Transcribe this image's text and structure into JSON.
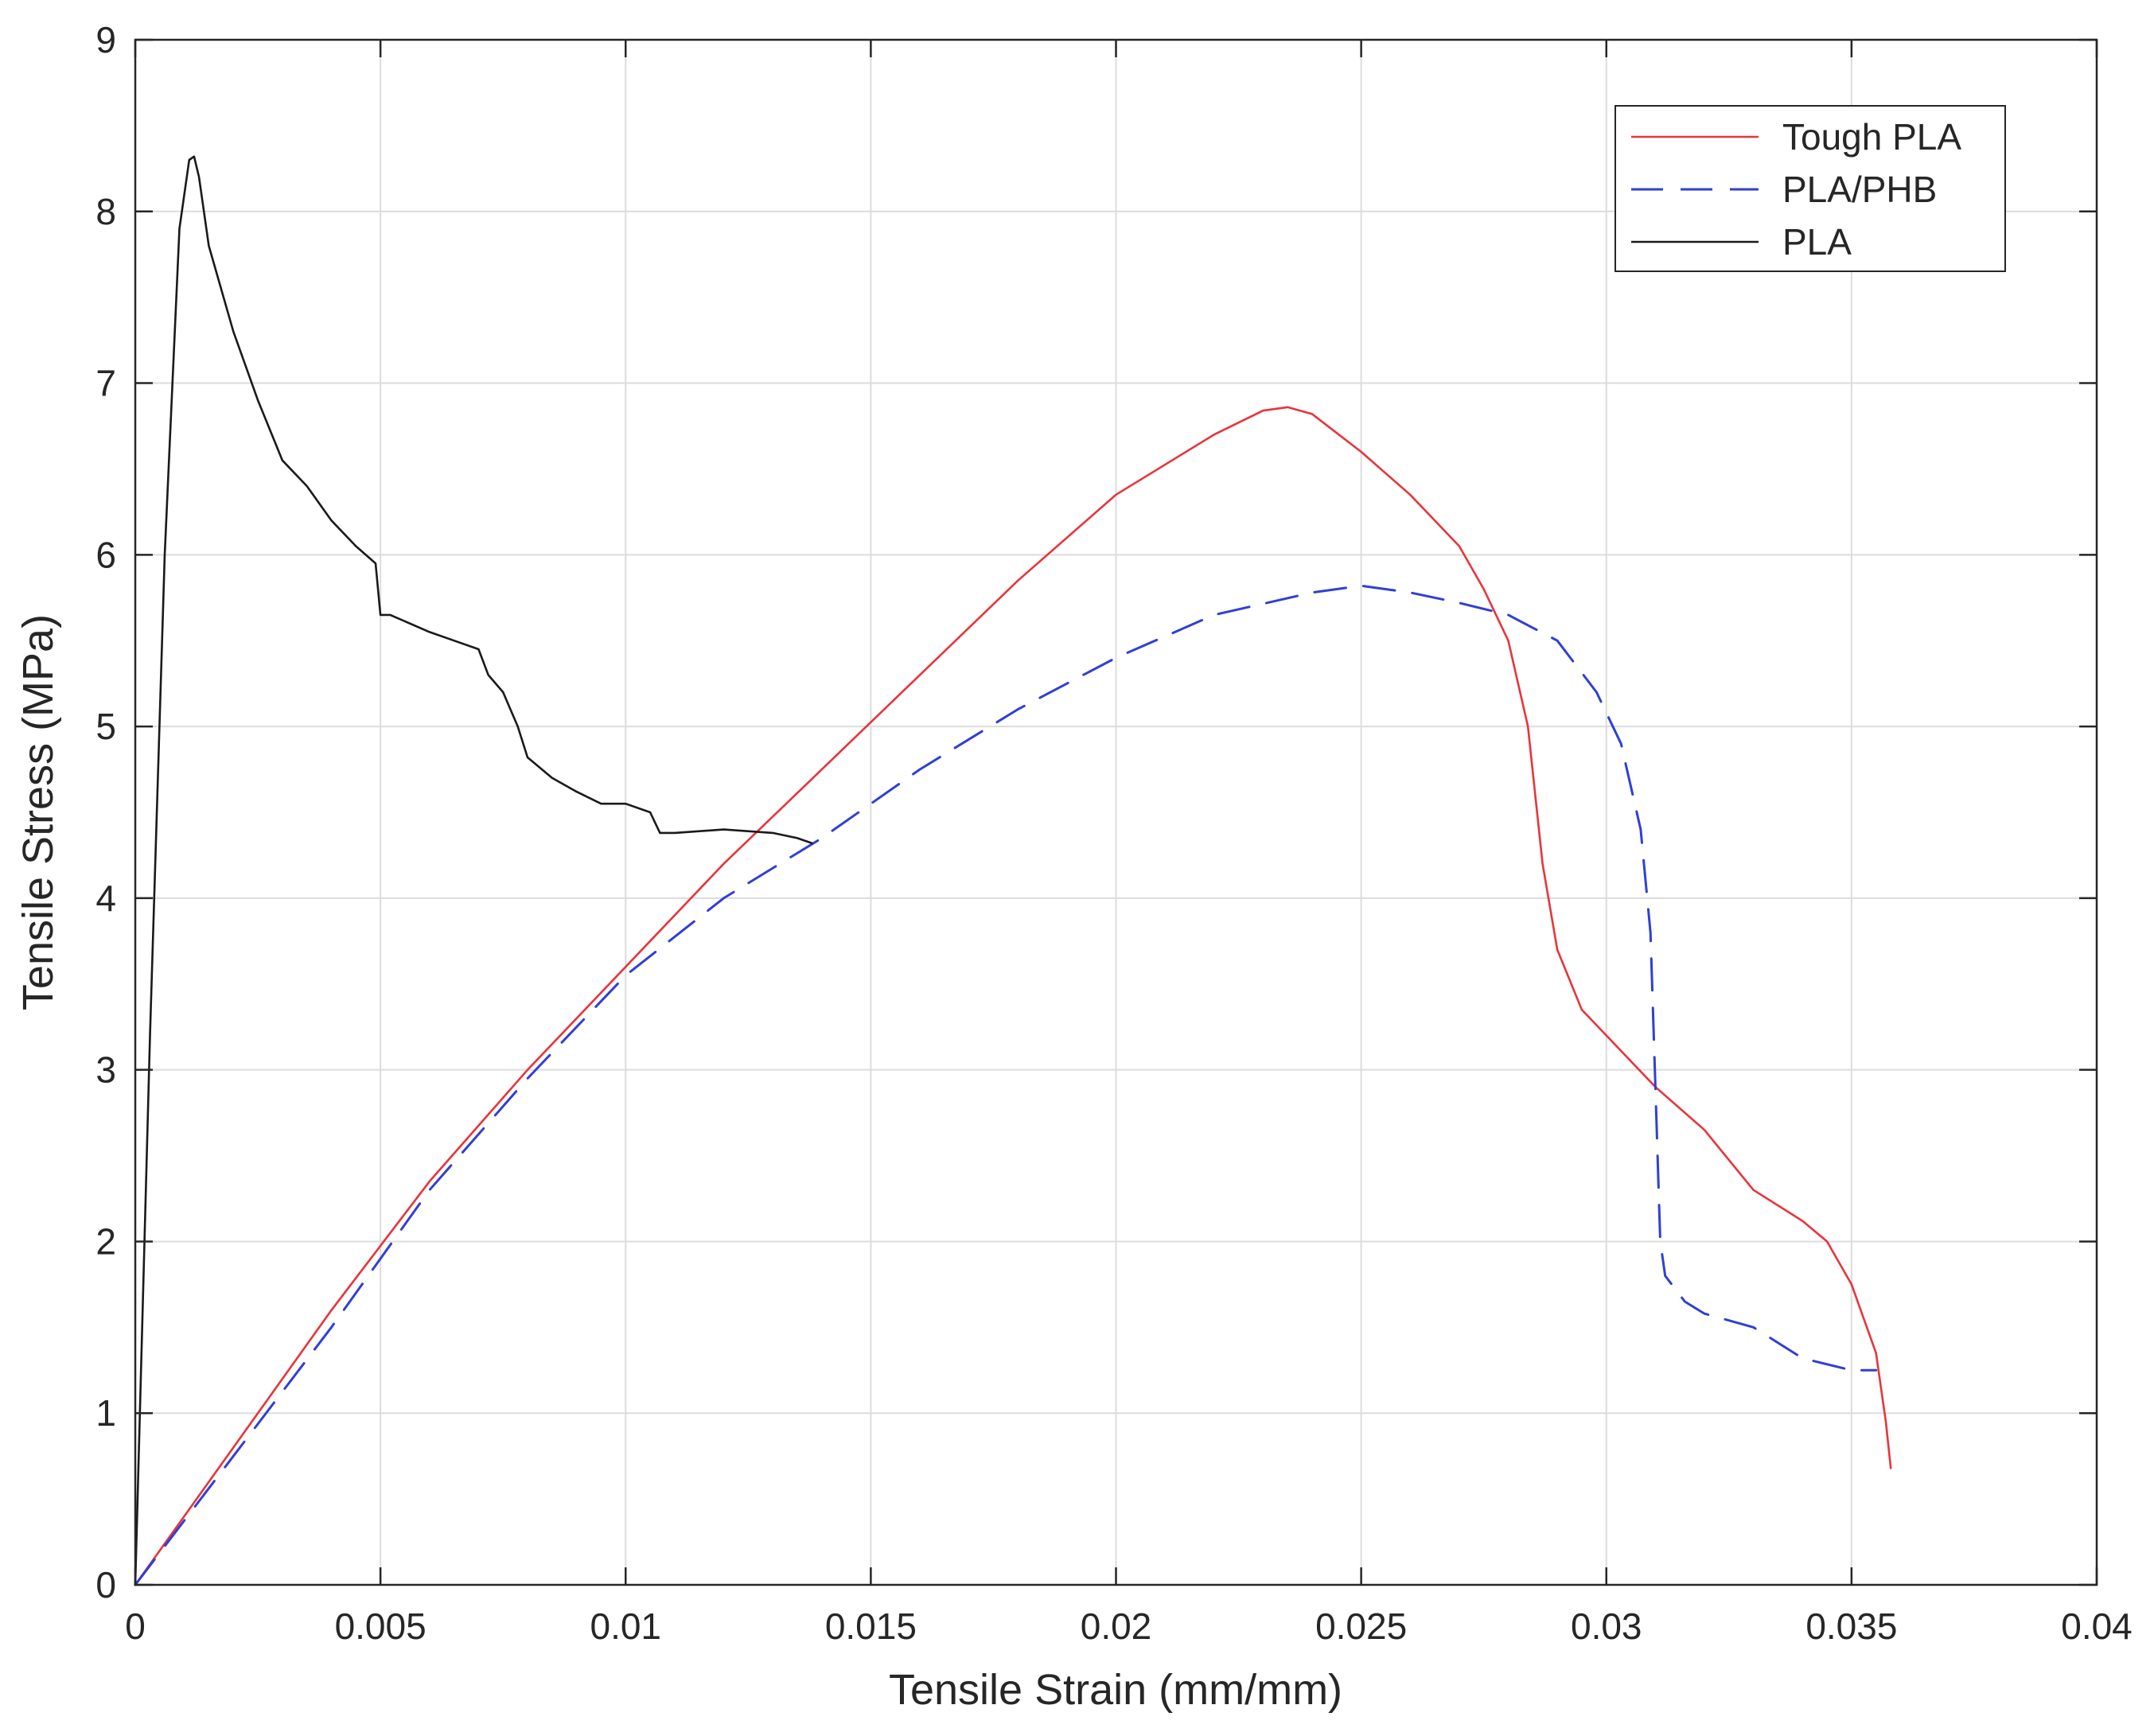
{
  "chart_data": {
    "type": "line",
    "title": "",
    "xlabel": "Tensile Strain (mm/mm)",
    "ylabel": "Tensile Stress (MPa)",
    "xlim": [
      0,
      0.04
    ],
    "ylim": [
      0,
      9
    ],
    "xticks": [
      0,
      0.005,
      0.01,
      0.015,
      0.02,
      0.025,
      0.03,
      0.035,
      0.04
    ],
    "xtick_labels": [
      "0",
      "0.005",
      "0.01",
      "0.015",
      "0.02",
      "0.025",
      "0.03",
      "0.035",
      "0.04"
    ],
    "yticks": [
      0,
      1,
      2,
      3,
      4,
      5,
      6,
      7,
      8,
      9
    ],
    "ytick_labels": [
      "0",
      "1",
      "2",
      "3",
      "4",
      "5",
      "6",
      "7",
      "8",
      "9"
    ],
    "grid": true,
    "legend_position": "top-right",
    "series": [
      {
        "name": "Tough PLA",
        "color": "#e8343a",
        "dash": "solid",
        "x": [
          0,
          0.002,
          0.004,
          0.006,
          0.008,
          0.01,
          0.012,
          0.014,
          0.016,
          0.018,
          0.02,
          0.022,
          0.023,
          0.0235,
          0.024,
          0.025,
          0.026,
          0.027,
          0.0275,
          0.028,
          0.0284,
          0.0287,
          0.029,
          0.0295,
          0.03,
          0.0305,
          0.031,
          0.032,
          0.033,
          0.034,
          0.0345,
          0.035,
          0.0355,
          0.0357,
          0.0358
        ],
        "y": [
          0,
          0.8,
          1.6,
          2.35,
          3.0,
          3.6,
          4.2,
          4.75,
          5.3,
          5.85,
          6.35,
          6.7,
          6.84,
          6.86,
          6.82,
          6.6,
          6.35,
          6.05,
          5.8,
          5.5,
          5.0,
          4.2,
          3.7,
          3.35,
          3.2,
          3.05,
          2.9,
          2.65,
          2.3,
          2.12,
          2.0,
          1.75,
          1.35,
          0.95,
          0.68
        ]
      },
      {
        "name": "PLA/PHB",
        "color": "#2f3fd6",
        "dash": "dashed",
        "x": [
          0,
          0.002,
          0.004,
          0.006,
          0.008,
          0.01,
          0.012,
          0.014,
          0.016,
          0.018,
          0.02,
          0.022,
          0.024,
          0.025,
          0.026,
          0.027,
          0.028,
          0.029,
          0.0298,
          0.0303,
          0.0307,
          0.0309,
          0.031,
          0.0311,
          0.0312,
          0.0316,
          0.032,
          0.033,
          0.034,
          0.035,
          0.0355
        ],
        "y": [
          0,
          0.75,
          1.5,
          2.3,
          2.95,
          3.55,
          4.0,
          4.35,
          4.75,
          5.1,
          5.4,
          5.65,
          5.78,
          5.82,
          5.78,
          5.72,
          5.65,
          5.5,
          5.2,
          4.9,
          4.4,
          3.8,
          2.9,
          2.0,
          1.8,
          1.65,
          1.58,
          1.5,
          1.32,
          1.25,
          1.25
        ]
      },
      {
        "name": "PLA",
        "color": "#1a1a1a",
        "dash": "solid",
        "x": [
          0,
          0.0003,
          0.0006,
          0.0009,
          0.0011,
          0.0012,
          0.0013,
          0.0015,
          0.002,
          0.0025,
          0.003,
          0.0035,
          0.004,
          0.0045,
          0.0049,
          0.005,
          0.0052,
          0.006,
          0.0065,
          0.007,
          0.0072,
          0.0075,
          0.0078,
          0.008,
          0.0085,
          0.009,
          0.0095,
          0.01,
          0.0105,
          0.0107,
          0.011,
          0.012,
          0.013,
          0.0135,
          0.0138
        ],
        "y": [
          0,
          3.2,
          6.0,
          7.9,
          8.3,
          8.32,
          8.2,
          7.8,
          7.3,
          6.9,
          6.55,
          6.4,
          6.2,
          6.05,
          5.95,
          5.65,
          5.65,
          5.55,
          5.5,
          5.45,
          5.3,
          5.2,
          5.0,
          4.82,
          4.7,
          4.62,
          4.55,
          4.55,
          4.5,
          4.38,
          4.38,
          4.4,
          4.38,
          4.35,
          4.32
        ]
      }
    ]
  }
}
